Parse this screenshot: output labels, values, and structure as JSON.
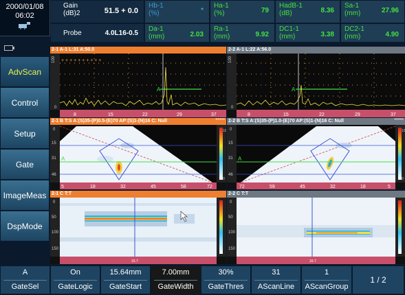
{
  "header": {
    "date": "2000/01/08",
    "time": "06:02",
    "gain_label": "Gain\n(dB)2",
    "gain_value": "51.5 + 0.0",
    "probe_label": "Probe",
    "probe_value": "4.0L16-0.5",
    "readings": [
      {
        "label": "Hb-1\n(%)",
        "value": "*"
      },
      {
        "label": "Ha-1\n(%)",
        "value": "79"
      },
      {
        "label": "HadB-1\n(dB)",
        "value": "8.36"
      },
      {
        "label": "Sa-1\n(mm)",
        "value": "27.96"
      },
      {
        "label": "Da-1\n(mm)",
        "value": "2.03"
      },
      {
        "label": "Ra-1\n(mm)",
        "value": "9.92"
      },
      {
        "label": "DC1-1\n(mm)",
        "value": "3.38"
      },
      {
        "label": "DC2-1\n(mm)",
        "value": "4.90"
      }
    ]
  },
  "menu": [
    "AdvScan",
    "Control",
    "Setup",
    "Gate",
    "ImageMeas",
    "DspMode"
  ],
  "panes": {
    "ascan_left": {
      "title": "2-1 A-1  L:31  A:50.0",
      "ticks": [
        "8",
        "15",
        "22",
        "29",
        "37"
      ],
      "ylabels": [
        "100",
        "0"
      ]
    },
    "ascan_right": {
      "title": "2-2 A-1  L:22  A:56.0",
      "ticks": [
        "8",
        "15",
        "22",
        "29",
        "37"
      ],
      "ylabels": [
        "100",
        "0"
      ]
    },
    "sscan_left": {
      "title": "2-1 B  T:S A:(S)35-(P)0.5-(E)70 AP:(S)1-(N)16 C: Null",
      "dots": "*****",
      "ticks": [
        "5",
        "18",
        "32",
        "45",
        "58",
        "72"
      ],
      "ylabels": [
        "0",
        "15",
        "31",
        "46"
      ],
      "scale": [
        "100",
        "0"
      ]
    },
    "sscan_right": {
      "title": "2-2 B  T:S A:(S)35-(P)1.0-(E)70 AP:(S)1-(N)16 C: Null",
      "dots": "*****",
      "ticks": [
        "72",
        "59",
        "45",
        "32",
        "18",
        "5"
      ],
      "ylabels": [
        "0",
        "15",
        "31",
        "46"
      ],
      "scale": [
        "100",
        "0"
      ]
    },
    "cscan_left": {
      "title": "2-1 C T:T",
      "foot": "16.7",
      "ylabels": [
        "0",
        "50",
        "100",
        "150"
      ]
    },
    "cscan_right": {
      "title": "2-2 C T:T",
      "foot": "16.7",
      "ylabels": [
        "0",
        "50",
        "100",
        "150"
      ]
    },
    "gate_marker": "A"
  },
  "bottom": [
    {
      "value": "A",
      "name": "GateSel"
    },
    {
      "value": "On",
      "name": "GateLogic"
    },
    {
      "value": "15.64mm",
      "name": "GateStart"
    },
    {
      "value": "7.00mm",
      "name": "GateWidth"
    },
    {
      "value": "30%",
      "name": "GateThres"
    },
    {
      "value": "31",
      "name": "AScanLine"
    },
    {
      "value": "1",
      "name": "AScanGroup"
    }
  ],
  "page": "1 / 2",
  "colors": {
    "accent_orange": "#ef7f30",
    "gate_green": "#43e043",
    "menu_blue": "#2a5c7e",
    "selected_btn": "#181818"
  }
}
